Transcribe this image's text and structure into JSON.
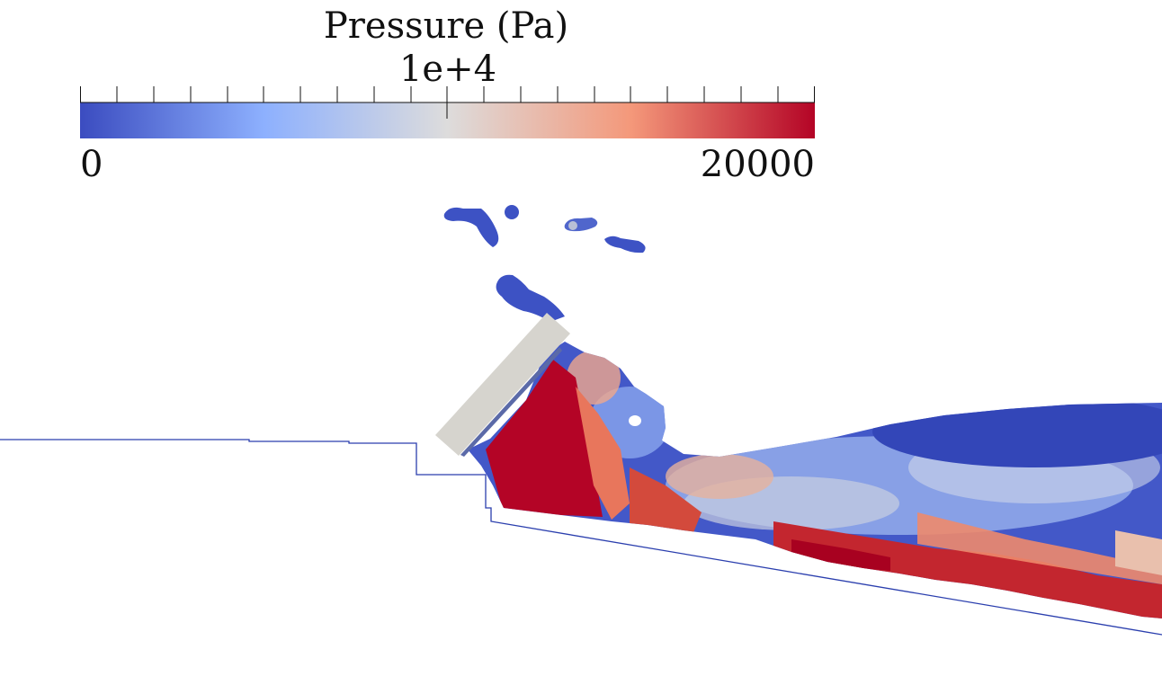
{
  "colorbar": {
    "title": "Pressure (Pa)",
    "mid_label": "1e+4",
    "min_label": "0",
    "max_label": "20000",
    "range": [
      0,
      20000
    ],
    "colormap": [
      "#3b4cc0",
      "#8db0fe",
      "#dddcdc",
      "#f4987a",
      "#b40426"
    ]
  },
  "colors": {
    "low_pressure": "#3b4cc0",
    "high_pressure": "#b40426",
    "gate": "#d6d4ce",
    "bed_outline": "#2b3fae"
  }
}
